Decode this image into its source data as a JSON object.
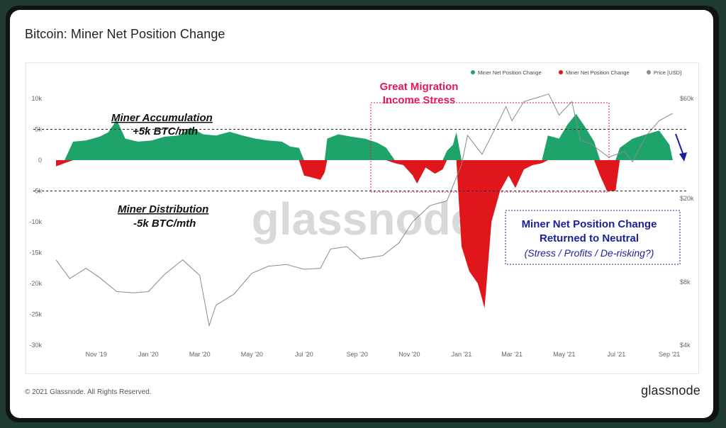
{
  "page": {
    "title": "Bitcoin: Miner Net Position Change",
    "copyright": "© 2021 Glassnode. All Rights Reserved.",
    "brand": "glassnode",
    "watermark": "glassnode"
  },
  "colors": {
    "positive": "#1ea36b",
    "negative": "#e0161b",
    "price": "#8a8a8a",
    "annotation_pink": "#e3175f",
    "annotation_blue": "#1b1f9a"
  },
  "chart_data": {
    "type": "area",
    "legend": {
      "placement": "top-right",
      "items": [
        {
          "label": "Miner Net Position Change",
          "color": "#1ea36b"
        },
        {
          "label": "Miner Net Position Change",
          "color": "#e0161b"
        },
        {
          "label": "Price [USD]",
          "color": "#8a8a8a"
        }
      ]
    },
    "ylim_left": [
      -30000,
      10000
    ],
    "ylim_right": [
      4000,
      60000
    ],
    "right_axis_scale": "log",
    "left_ticks": [
      {
        "value": 10000,
        "label": "10k"
      },
      {
        "value": 5000,
        "label": "5k"
      },
      {
        "value": 0,
        "label": "0"
      },
      {
        "value": -5000,
        "label": "-5k"
      },
      {
        "value": -10000,
        "label": "-10k"
      },
      {
        "value": -15000,
        "label": "-15k"
      },
      {
        "value": -20000,
        "label": "-20k"
      },
      {
        "value": -25000,
        "label": "-25k"
      },
      {
        "value": -30000,
        "label": "-30k"
      }
    ],
    "right_ticks": [
      {
        "value": 60000,
        "label": "$60k"
      },
      {
        "value": 20000,
        "label": "$20k"
      },
      {
        "value": 8000,
        "label": "$8k"
      },
      {
        "value": 4000,
        "label": "$4k"
      }
    ],
    "xlim": [
      "2019-09-15",
      "2021-09-05"
    ],
    "x_ticks": [
      {
        "date": "2019-11-01",
        "label": "Nov '19"
      },
      {
        "date": "2020-01-01",
        "label": "Jan '20"
      },
      {
        "date": "2020-03-01",
        "label": "Mar '20"
      },
      {
        "date": "2020-05-01",
        "label": "May '20"
      },
      {
        "date": "2020-07-01",
        "label": "Jul '20"
      },
      {
        "date": "2020-09-01",
        "label": "Sep '20"
      },
      {
        "date": "2020-11-01",
        "label": "Nov '20"
      },
      {
        "date": "2021-01-01",
        "label": "Jan '21"
      },
      {
        "date": "2021-03-01",
        "label": "Mar '21"
      },
      {
        "date": "2021-05-01",
        "label": "May '21"
      },
      {
        "date": "2021-07-01",
        "label": "Jul '21"
      },
      {
        "date": "2021-09-01",
        "label": "Sep '21"
      }
    ],
    "series": [
      {
        "name": "Miner Net Position Change",
        "axis": "left",
        "points": [
          [
            "2019-09-15",
            -1000
          ],
          [
            "2019-09-25",
            -500
          ],
          [
            "2019-10-05",
            3000
          ],
          [
            "2019-10-20",
            3200
          ],
          [
            "2019-11-05",
            3800
          ],
          [
            "2019-11-15",
            4500
          ],
          [
            "2019-11-25",
            6500
          ],
          [
            "2019-12-05",
            3500
          ],
          [
            "2019-12-20",
            3000
          ],
          [
            "2020-01-05",
            3200
          ],
          [
            "2020-01-20",
            3800
          ],
          [
            "2020-02-05",
            4000
          ],
          [
            "2020-02-20",
            5200
          ],
          [
            "2020-03-05",
            4200
          ],
          [
            "2020-03-20",
            4000
          ],
          [
            "2020-04-05",
            4600
          ],
          [
            "2020-04-20",
            4000
          ],
          [
            "2020-05-05",
            3500
          ],
          [
            "2020-05-20",
            3200
          ],
          [
            "2020-06-05",
            3000
          ],
          [
            "2020-06-15",
            2200
          ],
          [
            "2020-06-25",
            2000
          ],
          [
            "2020-07-01",
            -2500
          ],
          [
            "2020-07-10",
            -2800
          ],
          [
            "2020-07-20",
            -3200
          ],
          [
            "2020-07-25",
            -2000
          ],
          [
            "2020-07-28",
            3500
          ],
          [
            "2020-08-10",
            4200
          ],
          [
            "2020-08-25",
            3800
          ],
          [
            "2020-09-10",
            3500
          ],
          [
            "2020-09-25",
            2800
          ],
          [
            "2020-10-05",
            2000
          ],
          [
            "2020-10-15",
            -500
          ],
          [
            "2020-10-25",
            -800
          ],
          [
            "2020-11-05",
            -2500
          ],
          [
            "2020-11-10",
            -3800
          ],
          [
            "2020-11-20",
            -1200
          ],
          [
            "2020-12-01",
            -2200
          ],
          [
            "2020-12-10",
            -1500
          ],
          [
            "2020-12-15",
            1500
          ],
          [
            "2020-12-22",
            2500
          ],
          [
            "2020-12-26",
            4500
          ],
          [
            "2021-01-01",
            -14000
          ],
          [
            "2021-01-10",
            -18000
          ],
          [
            "2021-01-20",
            -20000
          ],
          [
            "2021-01-28",
            -24000
          ],
          [
            "2021-02-05",
            -10000
          ],
          [
            "2021-02-15",
            -5000
          ],
          [
            "2021-02-25",
            -2500
          ],
          [
            "2021-03-05",
            -4500
          ],
          [
            "2021-03-15",
            -1500
          ],
          [
            "2021-03-25",
            -800
          ],
          [
            "2021-04-05",
            -500
          ],
          [
            "2021-04-12",
            4000
          ],
          [
            "2021-04-25",
            3500
          ],
          [
            "2021-05-05",
            5800
          ],
          [
            "2021-05-15",
            7500
          ],
          [
            "2021-05-25",
            5500
          ],
          [
            "2021-06-05",
            3000
          ],
          [
            "2021-06-12",
            -2500
          ],
          [
            "2021-06-20",
            -5000
          ],
          [
            "2021-06-30",
            -5000
          ],
          [
            "2021-07-05",
            2000
          ],
          [
            "2021-07-20",
            3500
          ],
          [
            "2021-08-05",
            4200
          ],
          [
            "2021-08-20",
            4800
          ],
          [
            "2021-09-01",
            2500
          ],
          [
            "2021-09-05",
            0
          ]
        ]
      },
      {
        "name": "Price [USD]",
        "axis": "right",
        "points": [
          [
            "2019-09-15",
            10200
          ],
          [
            "2019-10-01",
            8300
          ],
          [
            "2019-10-20",
            9300
          ],
          [
            "2019-11-05",
            8400
          ],
          [
            "2019-11-25",
            7200
          ],
          [
            "2019-12-15",
            7100
          ],
          [
            "2020-01-01",
            7200
          ],
          [
            "2020-01-20",
            8700
          ],
          [
            "2020-02-10",
            10200
          ],
          [
            "2020-03-01",
            8600
          ],
          [
            "2020-03-12",
            4950
          ],
          [
            "2020-03-20",
            6200
          ],
          [
            "2020-04-10",
            7000
          ],
          [
            "2020-05-01",
            8800
          ],
          [
            "2020-05-20",
            9500
          ],
          [
            "2020-06-10",
            9700
          ],
          [
            "2020-07-01",
            9200
          ],
          [
            "2020-07-20",
            9300
          ],
          [
            "2020-08-01",
            11500
          ],
          [
            "2020-08-20",
            11800
          ],
          [
            "2020-09-05",
            10300
          ],
          [
            "2020-10-01",
            10700
          ],
          [
            "2020-10-20",
            12300
          ],
          [
            "2020-11-05",
            15500
          ],
          [
            "2020-11-25",
            18500
          ],
          [
            "2020-12-15",
            19500
          ],
          [
            "2021-01-01",
            29000
          ],
          [
            "2021-01-08",
            40000
          ],
          [
            "2021-01-25",
            32500
          ],
          [
            "2021-02-15",
            48000
          ],
          [
            "2021-02-22",
            55000
          ],
          [
            "2021-03-01",
            47000
          ],
          [
            "2021-03-15",
            58000
          ],
          [
            "2021-04-13",
            63000
          ],
          [
            "2021-04-25",
            50000
          ],
          [
            "2021-05-10",
            58000
          ],
          [
            "2021-05-20",
            38000
          ],
          [
            "2021-06-01",
            36500
          ],
          [
            "2021-06-22",
            31500
          ],
          [
            "2021-07-10",
            33500
          ],
          [
            "2021-07-20",
            30000
          ],
          [
            "2021-08-05",
            40000
          ],
          [
            "2021-08-20",
            47000
          ],
          [
            "2021-09-05",
            51000
          ]
        ]
      }
    ],
    "annotations": {
      "accumulation_title": "Miner Accumulation",
      "accumulation_value": "+5k BTC/mth",
      "distribution_title": "Miner Distribution",
      "distribution_value": "-5k BTC/mth",
      "migration_line1": "Great Migration",
      "migration_line2": "Income Stress",
      "neutral_line1": "Miner Net Position Change",
      "neutral_line2": "Returned to Neutral",
      "neutral_line3": "(Stress / Profits / De-risking?)"
    }
  }
}
